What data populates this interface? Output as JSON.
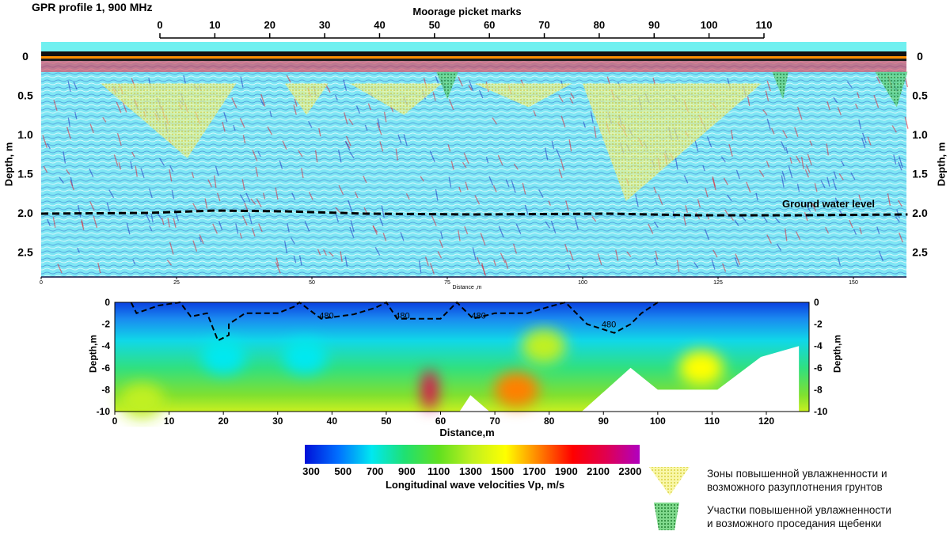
{
  "chart_data": [
    {
      "type": "heatmap",
      "title": "GPR profile 1,  900 MHz",
      "top_axis_label": "Moorage picket marks",
      "picket_ticks": [
        0,
        10,
        20,
        30,
        40,
        50,
        60,
        70,
        80,
        90,
        100,
        110
      ],
      "xlabel": "Distance ,m",
      "x_ticks": [
        0,
        25,
        50,
        75,
        100,
        125,
        150
      ],
      "xlim": [
        0,
        160
      ],
      "ylabel": "Depth, m",
      "y_ticks": [
        "0",
        "0.5",
        "1.0",
        "1.5",
        "2.0",
        "2.5"
      ],
      "ylim": [
        0,
        2.8
      ],
      "ground_water": {
        "label": "Ground water level",
        "points": [
          [
            0,
            2.01
          ],
          [
            20,
            2.0
          ],
          [
            32,
            1.97
          ],
          [
            45,
            1.98
          ],
          [
            60,
            2.01
          ],
          [
            80,
            2.02
          ],
          [
            105,
            2.01
          ],
          [
            120,
            2.03
          ],
          [
            140,
            2.03
          ],
          [
            160,
            2.02
          ]
        ]
      },
      "moisture_zones": [
        {
          "type": "yellow",
          "points": [
            [
              11,
              0.35
            ],
            [
              36,
              0.35
            ],
            [
              27,
              1.3
            ]
          ]
        },
        {
          "type": "yellow",
          "points": [
            [
              45,
              0.35
            ],
            [
              53,
              0.35
            ],
            [
              49,
              0.75
            ]
          ]
        },
        {
          "type": "yellow",
          "points": [
            [
              57,
              0.35
            ],
            [
              74,
              0.35
            ],
            [
              67,
              0.75
            ]
          ]
        },
        {
          "type": "yellow",
          "points": [
            [
              80,
              0.35
            ],
            [
              98,
              0.35
            ],
            [
              90,
              0.65
            ]
          ]
        },
        {
          "type": "yellow",
          "points": [
            [
              100,
              0.35
            ],
            [
              133,
              0.35
            ],
            [
              108,
              1.85
            ]
          ]
        },
        {
          "type": "green",
          "points": [
            [
              73,
              0.2
            ],
            [
              77,
              0.2
            ],
            [
              75,
              0.55
            ]
          ]
        },
        {
          "type": "green",
          "points": [
            [
              135,
              0.2
            ],
            [
              138,
              0.2
            ],
            [
              137,
              0.55
            ]
          ]
        },
        {
          "type": "green",
          "points": [
            [
              154,
              0.2
            ],
            [
              160,
              0.2
            ],
            [
              158,
              0.65
            ]
          ]
        }
      ]
    },
    {
      "type": "heatmap",
      "xlabel": "Distance,m",
      "x_ticks": [
        0,
        10,
        20,
        30,
        40,
        50,
        60,
        70,
        80,
        90,
        100,
        110,
        120
      ],
      "xlim": [
        0,
        127
      ],
      "ylabel": "Depth,m",
      "y_ticks": [
        0,
        -2,
        -4,
        -6,
        -8,
        -10
      ],
      "ylim": [
        -10,
        0
      ],
      "contour_value": "480",
      "contour_labels": [
        {
          "x": 39,
          "depth": -1.2
        },
        {
          "x": 53,
          "depth": -1.2
        },
        {
          "x": 67,
          "depth": -1.2
        },
        {
          "x": 91,
          "depth": -2
        }
      ],
      "contour_480": [
        [
          3,
          0
        ],
        [
          4,
          -1
        ],
        [
          8,
          -0.3
        ],
        [
          12,
          0
        ],
        [
          14,
          -1.3
        ],
        [
          17,
          -1
        ],
        [
          19,
          -3.5
        ],
        [
          21,
          -3
        ],
        [
          21,
          -2
        ],
        [
          24,
          -1
        ],
        [
          30,
          -1
        ],
        [
          33,
          -0.4
        ],
        [
          34,
          0
        ],
        [
          38,
          -1.5
        ],
        [
          44,
          -1.1
        ],
        [
          48,
          -0.5
        ],
        [
          50,
          0
        ],
        [
          52,
          -1.5
        ],
        [
          60,
          -1.5
        ],
        [
          63,
          0
        ],
        [
          66,
          -1.5
        ],
        [
          70,
          -1
        ],
        [
          76,
          -1
        ],
        [
          80,
          -0.4
        ],
        [
          83,
          0
        ],
        [
          87,
          -2
        ],
        [
          92,
          -2.8
        ],
        [
          95,
          -2
        ],
        [
          97,
          -1
        ],
        [
          100,
          0
        ]
      ],
      "no_data": [
        [
          [
            63.5,
            -10
          ],
          [
            65.5,
            -8.5
          ],
          [
            69,
            -10
          ]
        ],
        [
          [
            86,
            -10
          ],
          [
            95,
            -6
          ],
          [
            100,
            -8
          ],
          [
            111,
            -8
          ],
          [
            119,
            -5
          ],
          [
            126,
            -4
          ],
          [
            126,
            -10
          ]
        ]
      ],
      "anomalies": [
        {
          "x": 58,
          "depth": -8,
          "velocity": 2200
        },
        {
          "x": 74,
          "depth": -8,
          "velocity": 1800
        },
        {
          "x": 108,
          "depth": -6,
          "velocity": 1600
        },
        {
          "x": 79,
          "depth": -4,
          "velocity": 1300
        },
        {
          "x": 20,
          "depth": -5,
          "velocity": 800
        },
        {
          "x": 35,
          "depth": -5,
          "velocity": 750
        },
        {
          "x": 5,
          "depth": -9,
          "velocity": 1400
        }
      ],
      "colorbar": {
        "title": "Longitudinal wave velocities Vp, m/s",
        "ticks": [
          300,
          500,
          700,
          900,
          1100,
          1300,
          1500,
          1700,
          1900,
          2100,
          2300
        ],
        "range": [
          300,
          2400
        ],
        "colors": [
          "#0010d8",
          "#0070ff",
          "#00e8f0",
          "#20e070",
          "#60e020",
          "#c0f020",
          "#ffff00",
          "#ff8000",
          "#ff0000",
          "#e00050",
          "#b000c0"
        ]
      }
    }
  ],
  "legend": [
    {
      "label_1": "Зоны повышенной увлажненности и",
      "label_2": "возможного разуплотнения грунтов",
      "color": "#f0f060"
    },
    {
      "label_1": "Участки повышенной увлажненности",
      "label_2": "и возможного проседания щебенки",
      "color": "#30c040"
    }
  ]
}
